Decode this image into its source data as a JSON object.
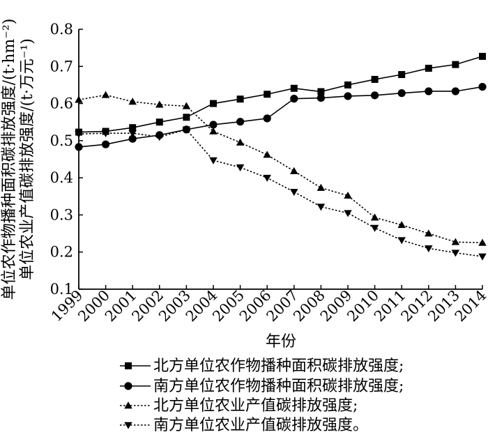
{
  "chart_data": {
    "type": "line",
    "x": [
      1999,
      2000,
      2001,
      2002,
      2003,
      2004,
      2005,
      2006,
      2007,
      2008,
      2009,
      2010,
      2011,
      2012,
      2013,
      2014
    ],
    "xlabel": "年份",
    "ylabel_line1": "单位农作物播种面积碳排放强度/(t·hm⁻²)",
    "ylabel_line2": "单位农业产值碳排放强度/(t·万元⁻¹)",
    "ylim": [
      0.1,
      0.8
    ],
    "yticks": [
      0.1,
      0.2,
      0.3,
      0.4,
      0.5,
      0.6,
      0.7,
      0.8
    ],
    "xtick_labels": [
      "1999",
      "2000",
      "2001",
      "2002",
      "2003",
      "2004",
      "2005",
      "2006",
      "2007",
      "2008",
      "2009",
      "2010",
      "2011",
      "2012",
      "2013",
      "2014"
    ],
    "ytick_labels": [
      "0.1",
      "0.2",
      "0.3",
      "0.4",
      "0.5",
      "0.6",
      "0.7",
      "0.8"
    ],
    "legend_placement": "bottom",
    "series": [
      {
        "name": "北方单位农作物播种面积碳排放强度;",
        "marker": "square",
        "style": "solid",
        "values": [
          0.523,
          0.525,
          0.535,
          0.55,
          0.563,
          0.6,
          0.612,
          0.625,
          0.641,
          0.632,
          0.65,
          0.665,
          0.678,
          0.695,
          0.705,
          0.727
        ]
      },
      {
        "name": "南方单位农作物播种面积碳排放强度;",
        "marker": "circle",
        "style": "solid",
        "values": [
          0.483,
          0.49,
          0.505,
          0.515,
          0.53,
          0.543,
          0.551,
          0.56,
          0.613,
          0.615,
          0.62,
          0.622,
          0.628,
          0.633,
          0.633,
          0.645
        ]
      },
      {
        "name": "北方单位农业产值碳排放强度;",
        "marker": "triangle-up",
        "style": "dotted",
        "values": [
          0.61,
          0.623,
          0.605,
          0.597,
          0.593,
          0.525,
          0.495,
          0.462,
          0.418,
          0.373,
          0.352,
          0.293,
          0.273,
          0.25,
          0.227,
          0.225
        ]
      },
      {
        "name": "南方单位农业产值碳排放强度。",
        "marker": "triangle-down",
        "style": "dotted",
        "values": [
          0.518,
          0.52,
          0.52,
          0.51,
          0.53,
          0.447,
          0.428,
          0.4,
          0.362,
          0.322,
          0.305,
          0.265,
          0.232,
          0.21,
          0.198,
          0.188
        ]
      }
    ]
  }
}
